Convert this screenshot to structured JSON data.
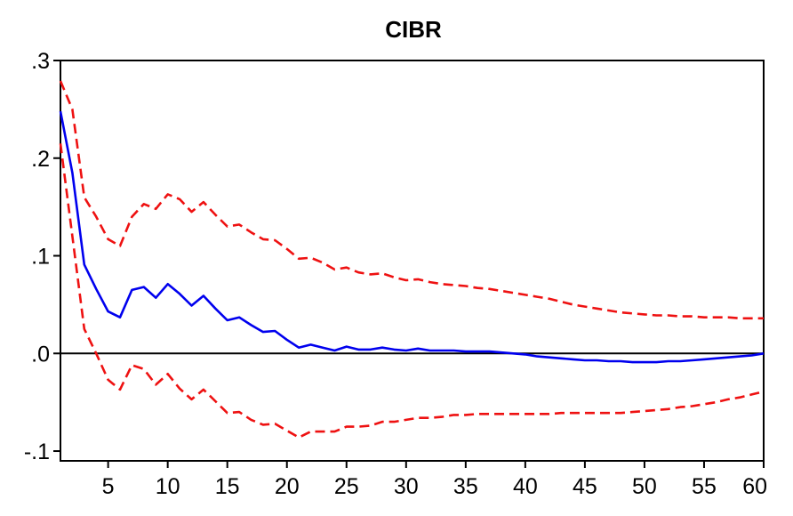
{
  "chart_data": {
    "type": "line",
    "title": "CIBR",
    "xlabel": "",
    "ylabel": "",
    "xlim": [
      1,
      60
    ],
    "ylim": [
      -0.11,
      0.3
    ],
    "x_ticks": [
      5,
      10,
      15,
      20,
      25,
      30,
      35,
      40,
      45,
      50,
      55,
      60
    ],
    "x_tick_labels": [
      "5",
      "10",
      "15",
      "20",
      "25",
      "30",
      "35",
      "40",
      "45",
      "50",
      "55",
      "60"
    ],
    "y_ticks": [
      0.3,
      0.2,
      0.1,
      0.0,
      -0.1
    ],
    "y_tick_labels": [
      ".3",
      ".2",
      ".1",
      ".0",
      "-.1"
    ],
    "zero_line": true,
    "grid": false,
    "legend": "none",
    "x": [
      1,
      2,
      3,
      4,
      5,
      6,
      7,
      8,
      9,
      10,
      11,
      12,
      13,
      14,
      15,
      16,
      17,
      18,
      19,
      20,
      21,
      22,
      23,
      24,
      25,
      26,
      27,
      28,
      29,
      30,
      31,
      32,
      33,
      34,
      35,
      36,
      37,
      38,
      39,
      40,
      41,
      42,
      43,
      44,
      45,
      46,
      47,
      48,
      49,
      50,
      51,
      52,
      53,
      54,
      55,
      56,
      57,
      58,
      59,
      60
    ],
    "series": [
      {
        "role": "response",
        "color": "#0000ee",
        "dash": "solid",
        "values": [
          0.248,
          0.185,
          0.091,
          0.066,
          0.043,
          0.037,
          0.065,
          0.068,
          0.057,
          0.071,
          0.061,
          0.049,
          0.059,
          0.046,
          0.034,
          0.037,
          0.029,
          0.022,
          0.023,
          0.014,
          0.006,
          0.009,
          0.006,
          0.003,
          0.007,
          0.004,
          0.004,
          0.006,
          0.004,
          0.003,
          0.005,
          0.003,
          0.003,
          0.003,
          0.002,
          0.002,
          0.002,
          0.001,
          0.0,
          -0.001,
          -0.003,
          -0.004,
          -0.005,
          -0.006,
          -0.007,
          -0.007,
          -0.008,
          -0.008,
          -0.009,
          -0.009,
          -0.009,
          -0.008,
          -0.008,
          -0.007,
          -0.006,
          -0.005,
          -0.004,
          -0.003,
          -0.002,
          0.0
        ]
      },
      {
        "role": "upper-band",
        "color": "#ee1111",
        "dash": "dashed",
        "values": [
          0.279,
          0.25,
          0.16,
          0.14,
          0.117,
          0.11,
          0.14,
          0.153,
          0.148,
          0.163,
          0.158,
          0.145,
          0.155,
          0.142,
          0.13,
          0.132,
          0.124,
          0.117,
          0.116,
          0.107,
          0.097,
          0.098,
          0.093,
          0.086,
          0.088,
          0.083,
          0.081,
          0.082,
          0.078,
          0.075,
          0.076,
          0.073,
          0.071,
          0.07,
          0.069,
          0.067,
          0.066,
          0.064,
          0.062,
          0.06,
          0.058,
          0.056,
          0.053,
          0.05,
          0.048,
          0.046,
          0.044,
          0.042,
          0.041,
          0.04,
          0.039,
          0.039,
          0.038,
          0.038,
          0.037,
          0.037,
          0.037,
          0.036,
          0.036,
          0.036
        ]
      },
      {
        "role": "lower-band",
        "color": "#ee1111",
        "dash": "dashed",
        "values": [
          0.215,
          0.12,
          0.025,
          0.0,
          -0.027,
          -0.037,
          -0.012,
          -0.016,
          -0.032,
          -0.021,
          -0.036,
          -0.047,
          -0.037,
          -0.049,
          -0.061,
          -0.06,
          -0.068,
          -0.073,
          -0.072,
          -0.079,
          -0.086,
          -0.08,
          -0.08,
          -0.08,
          -0.075,
          -0.075,
          -0.074,
          -0.07,
          -0.07,
          -0.068,
          -0.066,
          -0.066,
          -0.065,
          -0.063,
          -0.063,
          -0.062,
          -0.062,
          -0.062,
          -0.062,
          -0.062,
          -0.062,
          -0.062,
          -0.061,
          -0.061,
          -0.061,
          -0.061,
          -0.061,
          -0.061,
          -0.06,
          -0.059,
          -0.058,
          -0.057,
          -0.055,
          -0.054,
          -0.052,
          -0.05,
          -0.047,
          -0.045,
          -0.042,
          -0.039
        ]
      }
    ]
  }
}
